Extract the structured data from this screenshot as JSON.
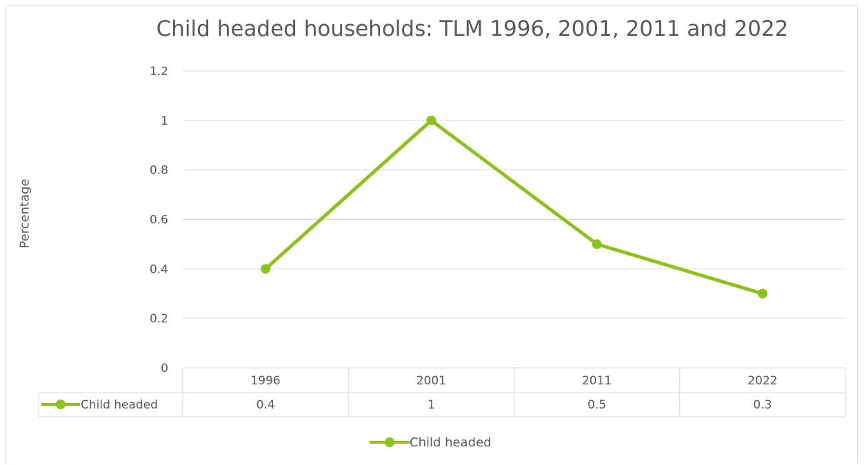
{
  "chart_data": {
    "type": "line",
    "title": "Child headed households: TLM 1996, 2001, 2011 and 2022",
    "xlabel": "",
    "ylabel": "Percentage",
    "categories": [
      "1996",
      "2001",
      "2011",
      "2022"
    ],
    "series": [
      {
        "name": "Child headed",
        "values": [
          0.4,
          1,
          0.5,
          0.3
        ],
        "value_labels": [
          "0.4",
          "1",
          "0.5",
          "0.3"
        ],
        "color": "#8cc21c"
      }
    ],
    "ylim": [
      0,
      1.2
    ],
    "yticks": [
      "0",
      "0.2",
      "0.4",
      "0.6",
      "0.8",
      "1",
      "1.2"
    ],
    "grid": true,
    "data_table": true,
    "legend_position": "bottom"
  }
}
